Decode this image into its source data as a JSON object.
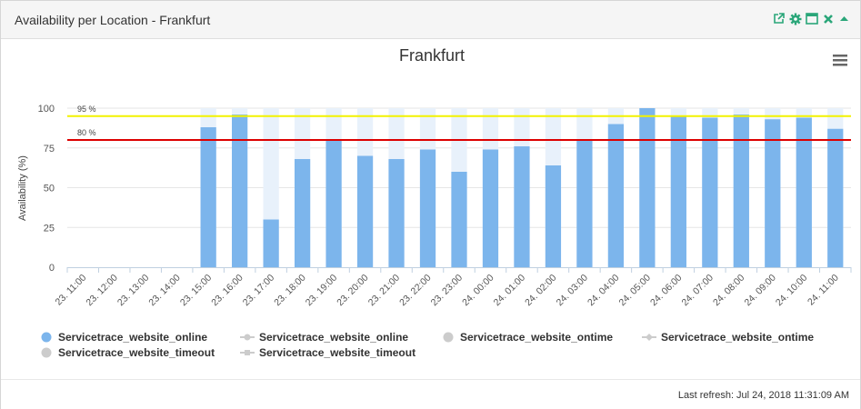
{
  "panel": {
    "title": "Availability per Location - Frankfurt",
    "icons": [
      "external-link-icon",
      "gear-icon",
      "maximize-icon",
      "close-icon",
      "collapse-icon"
    ],
    "accent": "#2aa679",
    "last_refresh": "Last refresh: Jul 24, 2018 11:31:09 AM"
  },
  "chart_data": {
    "type": "bar",
    "title": "Frankfurt",
    "ylabel": "Availability (%)",
    "xlabel": "",
    "ylim": [
      0,
      100
    ],
    "yticks": [
      0,
      25,
      50,
      75,
      100
    ],
    "categories": [
      "23. 11:00",
      "23. 12:00",
      "23. 13:00",
      "23. 14:00",
      "23. 15:00",
      "23. 16:00",
      "23. 17:00",
      "23. 18:00",
      "23. 19:00",
      "23. 20:00",
      "23. 21:00",
      "23. 22:00",
      "23. 23:00",
      "24. 00:00",
      "24. 01:00",
      "24. 02:00",
      "24. 03:00",
      "24. 04:00",
      "24. 05:00",
      "24. 06:00",
      "24. 07:00",
      "24. 08:00",
      "24. 09:00",
      "24. 10:00",
      "24. 11:00"
    ],
    "series": [
      {
        "name": "Servicetrace_website_online",
        "color": "#7cb5ec",
        "values": [
          null,
          null,
          null,
          null,
          88,
          96,
          30,
          68,
          80,
          70,
          68,
          74,
          60,
          74,
          76,
          64,
          80,
          90,
          100,
          95,
          94,
          96,
          93,
          94,
          87
        ]
      },
      {
        "name": "Servicetrace_website_timeout",
        "color": "#e8f1fb",
        "values": [
          null,
          null,
          null,
          null,
          100,
          100,
          100,
          100,
          100,
          100,
          100,
          100,
          100,
          100,
          100,
          100,
          100,
          100,
          100,
          100,
          100,
          100,
          100,
          100,
          100
        ]
      }
    ],
    "thresholds": [
      {
        "value": 95,
        "label": "95 %",
        "color": "#f2f200"
      },
      {
        "value": 80,
        "label": "80 %",
        "color": "#dd0000"
      }
    ],
    "grid": true,
    "legend": {
      "placement": "bottom-left",
      "items": [
        {
          "label": "Servicetrace_website_online",
          "symbol": "circle",
          "color": "#7cb5ec"
        },
        {
          "label": "Servicetrace_website_online",
          "symbol": "line-circle",
          "color": "#cccccc"
        },
        {
          "label": "Servicetrace_website_ontime",
          "symbol": "circle",
          "color": "#cccccc"
        },
        {
          "label": "Servicetrace_website_ontime",
          "symbol": "line-diamond",
          "color": "#cccccc"
        },
        {
          "label": "Servicetrace_website_timeout",
          "symbol": "circle",
          "color": "#cccccc"
        },
        {
          "label": "Servicetrace_website_timeout",
          "symbol": "line-square",
          "color": "#cccccc"
        }
      ]
    }
  }
}
